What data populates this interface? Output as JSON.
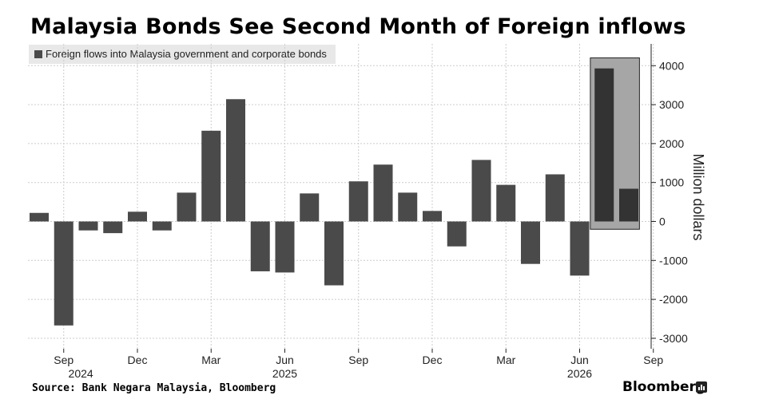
{
  "title": "Malaysia Bonds See Second Month of Foreign inflows",
  "source": "Source: Bank Negara Malaysia, Bloomberg",
  "brand": "Bloomberg",
  "colors": {
    "bar": "#4a4a4a",
    "bar_highlight": "#333333",
    "highlight_box": "#a6a6a6",
    "grid": "#cccccc"
  },
  "chart_data": {
    "type": "bar",
    "legend": [
      "Foreign flows into Malaysia government and corporate bonds"
    ],
    "ylabel": "Million dollars",
    "ylim": [
      -3300,
      4200
    ],
    "yticks": [
      -3000,
      -2000,
      -1000,
      0,
      1000,
      2000,
      3000,
      4000
    ],
    "y_axis_position": "right",
    "categories": [
      "2024-08",
      "2024-09",
      "2024-10",
      "2024-11",
      "2024-12",
      "2025-01",
      "2025-02",
      "2025-03",
      "2025-04",
      "2025-05",
      "2025-06",
      "2025-07",
      "2025-08",
      "2025-09",
      "2025-10",
      "2025-11",
      "2025-12",
      "2026-01",
      "2026-02",
      "2026-03",
      "2026-04",
      "2026-05",
      "2026-06",
      "2026-07",
      "2026-08"
    ],
    "values": [
      220,
      -2670,
      -230,
      -300,
      250,
      -230,
      740,
      2330,
      3140,
      -1280,
      -1310,
      720,
      -1640,
      1030,
      1460,
      740,
      270,
      -640,
      1580,
      940,
      -1090,
      1210,
      -1390,
      3930,
      840
    ],
    "highlight": [
      "2026-07",
      "2026-08"
    ],
    "x_tick_labels": [
      "Sep",
      "Dec",
      "Mar",
      "Jun",
      "Sep",
      "Dec",
      "Mar",
      "Jun",
      "Sep"
    ],
    "x_year_labels": [
      "2024",
      "2025",
      "2026"
    ],
    "grid": true
  }
}
